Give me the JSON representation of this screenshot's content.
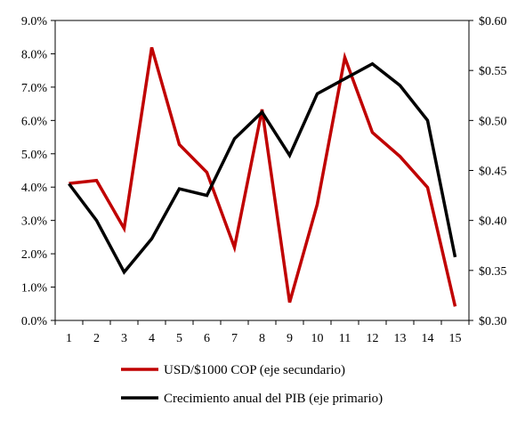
{
  "chart_data": {
    "type": "line",
    "title": "",
    "x": [
      1,
      2,
      3,
      4,
      5,
      6,
      7,
      8,
      9,
      10,
      11,
      12,
      13,
      14,
      15
    ],
    "y_primary": {
      "min": 0,
      "max": 0.09,
      "step": 0.01,
      "tick_labels": [
        "0.0%",
        "1.0%",
        "2.0%",
        "3.0%",
        "4.0%",
        "5.0%",
        "6.0%",
        "7.0%",
        "8.0%",
        "9.0%"
      ]
    },
    "y_secondary": {
      "min": 0.3,
      "max": 0.6,
      "step": 0.05,
      "tick_labels": [
        "$0.30",
        "$0.35",
        "$0.40",
        "$0.45",
        "$0.50",
        "$0.55",
        "$0.60"
      ]
    },
    "series": [
      {
        "name": "USD/$1000 COP (eje secundario)",
        "axis": "secondary",
        "color": "#c00000",
        "values": [
          0.437,
          0.44,
          0.392,
          0.573,
          0.476,
          0.448,
          0.373,
          0.511,
          0.318,
          0.416,
          0.563,
          0.488,
          0.464,
          0.433,
          0.314
        ]
      },
      {
        "name": "Crecimiento anual del PIB (eje primario)",
        "axis": "primary",
        "color": "#000000",
        "values": [
          0.041,
          0.03,
          0.0145,
          0.0245,
          0.0395,
          0.0375,
          0.0545,
          0.0625,
          0.0495,
          0.068,
          0.0725,
          0.077,
          0.0705,
          0.06,
          0.019
        ]
      }
    ],
    "legend_position": "bottom",
    "grid": false
  }
}
